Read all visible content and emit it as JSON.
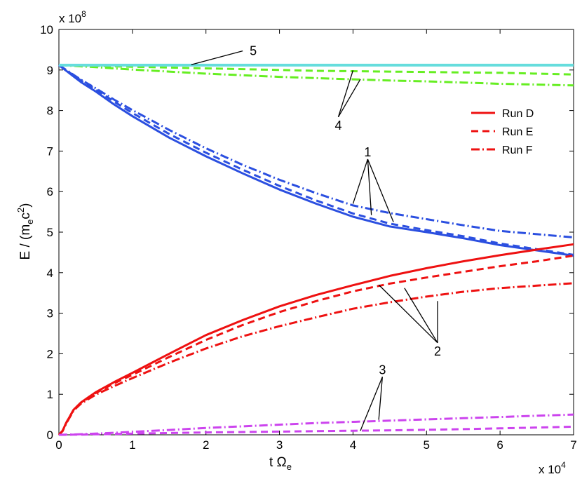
{
  "chart_data": {
    "type": "line",
    "xlabel": "t Ω",
    "xlabel_sub": "e",
    "ylabel_parts": [
      "E / (m",
      "e",
      "c",
      "2",
      ")"
    ],
    "x_multiplier": "x 10",
    "x_multiplier_exp": "4",
    "y_multiplier": "x 10",
    "y_multiplier_exp": "8",
    "xlim": [
      0,
      70000
    ],
    "ylim": [
      0,
      1000000000
    ],
    "xticks": [
      0,
      10000,
      20000,
      30000,
      40000,
      50000,
      60000,
      70000
    ],
    "xtick_labels": [
      "0",
      "1",
      "2",
      "3",
      "4",
      "5",
      "6",
      "7"
    ],
    "yticks": [
      0,
      100000000,
      200000000,
      300000000,
      400000000,
      500000000,
      600000000,
      700000000,
      800000000,
      900000000,
      1000000000
    ],
    "ytick_labels": [
      "0",
      "1",
      "2",
      "3",
      "4",
      "5",
      "6",
      "7",
      "8",
      "9",
      "10"
    ],
    "legend": {
      "placement": "top-right",
      "entries": [
        {
          "label": "Run D",
          "style": "solid",
          "color": "#ee1111"
        },
        {
          "label": "Run E",
          "style": "dashed",
          "color": "#ee1111"
        },
        {
          "label": "Run F",
          "style": "dashdot",
          "color": "#ee1111"
        }
      ]
    },
    "colors": {
      "curve1": "#2b4fe0",
      "curve2": "#ee1111",
      "curve3": "#cc44ee",
      "curve4": "#66ee22",
      "curve5": "#66dddd"
    },
    "x": [
      0,
      500,
      1000,
      2000,
      3000,
      5000,
      7500,
      10000,
      15000,
      20000,
      25000,
      30000,
      35000,
      40000,
      45000,
      50000,
      55000,
      60000,
      65000,
      70000
    ],
    "series": [
      {
        "group": "1",
        "run": "D",
        "style": "solid",
        "color": "#2b4fe0",
        "values": [
          912000000,
          905000000,
          898000000,
          884000000,
          870000000,
          847000000,
          815000000,
          786000000,
          733000000,
          687000000,
          645000000,
          605000000,
          570000000,
          538000000,
          514000000,
          500000000,
          485000000,
          468000000,
          455000000,
          442000000
        ]
      },
      {
        "group": "1",
        "run": "E",
        "style": "dashed",
        "color": "#2b4fe0",
        "values": [
          912000000,
          906000000,
          899000000,
          887000000,
          874000000,
          852000000,
          822000000,
          794000000,
          742000000,
          696000000,
          654000000,
          614000000,
          578000000,
          546000000,
          521000000,
          505000000,
          490000000,
          472000000,
          458000000,
          444000000
        ]
      },
      {
        "group": "1",
        "run": "F",
        "style": "dashdot",
        "color": "#2b4fe0",
        "values": [
          912000000,
          906000000,
          900000000,
          888000000,
          876000000,
          855000000,
          827000000,
          801000000,
          752000000,
          707000000,
          666000000,
          629000000,
          596000000,
          566000000,
          547000000,
          532000000,
          517000000,
          503000000,
          495000000,
          487000000
        ]
      },
      {
        "group": "2",
        "run": "D",
        "style": "solid",
        "color": "#ee1111",
        "values": [
          0,
          10000000,
          30000000,
          62000000,
          80000000,
          105000000,
          130000000,
          153000000,
          200000000,
          246000000,
          283000000,
          317000000,
          345000000,
          369000000,
          392000000,
          411000000,
          428000000,
          443000000,
          457000000,
          470000000
        ]
      },
      {
        "group": "2",
        "run": "E",
        "style": "dashed",
        "color": "#ee1111",
        "values": [
          0,
          10000000,
          30000000,
          62000000,
          79000000,
          103000000,
          127000000,
          148000000,
          192000000,
          234000000,
          271000000,
          303000000,
          330000000,
          354000000,
          373000000,
          388000000,
          402000000,
          416000000,
          428000000,
          442000000
        ]
      },
      {
        "group": "2",
        "run": "F",
        "style": "dashdot",
        "color": "#ee1111",
        "values": [
          0,
          9000000,
          28000000,
          60000000,
          77000000,
          99000000,
          120000000,
          140000000,
          178000000,
          213000000,
          243000000,
          268000000,
          290000000,
          311000000,
          327000000,
          341000000,
          353000000,
          362000000,
          368000000,
          374000000
        ]
      },
      {
        "group": "3",
        "run": "E",
        "style": "dashed",
        "color": "#cc44ee",
        "values": [
          0,
          0,
          100000,
          300000,
          600000,
          1200000,
          2000000,
          3000000,
          4500000,
          5800000,
          7000000,
          8000000,
          9000000,
          10000000,
          11000000,
          12500000,
          14000000,
          16000000,
          18000000,
          20000000
        ]
      },
      {
        "group": "3",
        "run": "F",
        "style": "dashdot",
        "color": "#cc44ee",
        "values": [
          0,
          100000,
          300000,
          800000,
          1500000,
          3000000,
          5000000,
          7500000,
          12000000,
          17000000,
          21000000,
          25000000,
          29000000,
          32000000,
          35000000,
          38000000,
          41000000,
          44000000,
          47000000,
          50000000
        ]
      },
      {
        "group": "4",
        "run": "E",
        "style": "dashed",
        "color": "#66ee22",
        "values": [
          912000000,
          912000000,
          912000000,
          911000000,
          911000000,
          910000000,
          909000000,
          908000000,
          906000000,
          904000000,
          902000000,
          900000000,
          898000000,
          897000000,
          896000000,
          895000000,
          894000000,
          893000000,
          891000000,
          889000000
        ]
      },
      {
        "group": "4",
        "run": "F",
        "style": "dashdot",
        "color": "#66ee22",
        "values": [
          912000000,
          912000000,
          911000000,
          910000000,
          909000000,
          907000000,
          904000000,
          901000000,
          896000000,
          891000000,
          887000000,
          883000000,
          880000000,
          877000000,
          874000000,
          872000000,
          869000000,
          866000000,
          864000000,
          862000000
        ]
      },
      {
        "group": "5",
        "run": "D",
        "style": "solid",
        "color": "#66dddd",
        "values": [
          912000000,
          912000000,
          912000000,
          912000000,
          912000000,
          912000000,
          912000000,
          912000000,
          912000000,
          912000000,
          912000000,
          912000000,
          912000000,
          912000000,
          912000000,
          912000000,
          912000000,
          912000000,
          912000000,
          912000000
        ]
      }
    ],
    "annotations": [
      {
        "label": "5",
        "x": 25000,
        "y": 947000000,
        "targets": [
          [
            18000,
            913000000
          ]
        ]
      },
      {
        "label": "4",
        "x": 38000,
        "y": 784000000,
        "targets": [
          [
            40000,
            899000000
          ],
          [
            41000,
            877000000
          ]
        ]
      },
      {
        "label": "1",
        "x": 42000,
        "y": 680000000,
        "targets": [
          [
            40000,
            570000000
          ],
          [
            42500,
            542000000
          ],
          [
            45500,
            525000000
          ]
        ]
      },
      {
        "label": "2",
        "x": 51500,
        "y": 227000000,
        "targets": [
          [
            43500,
            370000000
          ],
          [
            47000,
            362000000
          ],
          [
            51500,
            330000000
          ]
        ]
      },
      {
        "label": "3",
        "x": 44000,
        "y": 143000000,
        "targets": [
          [
            41000,
            10000000
          ],
          [
            43500,
            37000000
          ]
        ]
      }
    ]
  }
}
